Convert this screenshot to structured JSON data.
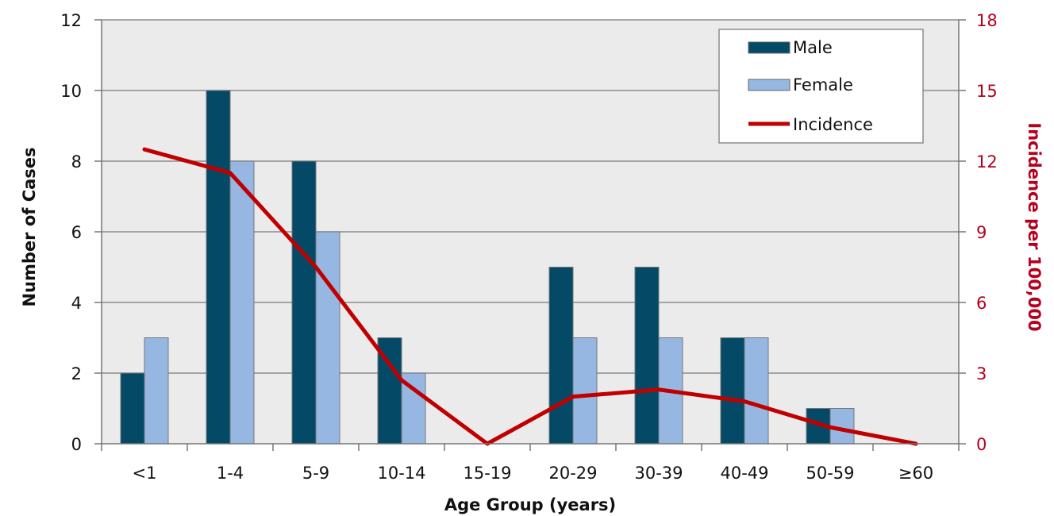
{
  "chart_data": {
    "type": "bar",
    "categories": [
      "<1",
      "1-4",
      "5-9",
      "10-14",
      "15-19",
      "20-29",
      "30-39",
      "40-49",
      "50-59",
      "≥60"
    ],
    "series": [
      {
        "name": "Male",
        "type": "bar",
        "axis": "left",
        "color": "#044a66",
        "values": [
          2,
          10,
          8,
          3,
          0,
          5,
          5,
          3,
          1,
          0
        ]
      },
      {
        "name": "Female",
        "type": "bar",
        "axis": "left",
        "color": "#95b7e2",
        "values": [
          3,
          8,
          6,
          2,
          0,
          3,
          3,
          3,
          1,
          0
        ]
      },
      {
        "name": "Incidence",
        "type": "line",
        "axis": "right",
        "color": "#c00000",
        "values": [
          12.5,
          11.5,
          7.5,
          2.7,
          0,
          2.0,
          2.3,
          1.8,
          0.7,
          0
        ]
      }
    ],
    "xlabel": "Age Group (years)",
    "ylabel": "Number of Cases",
    "y2label": "Incidence per 100,000",
    "ylim": [
      0,
      12
    ],
    "y2lim": [
      0,
      18
    ],
    "yticks": [
      "0",
      "2",
      "4",
      "6",
      "8",
      "10",
      "12"
    ],
    "y2ticks": [
      "0",
      "3",
      "6",
      "9",
      "12",
      "15",
      "18"
    ],
    "grid": true,
    "legend": "top-right",
    "colors": {
      "plot_background": "#ebebeb",
      "gridline": "#8c8c8c",
      "right_axis": "#b5001e"
    }
  }
}
